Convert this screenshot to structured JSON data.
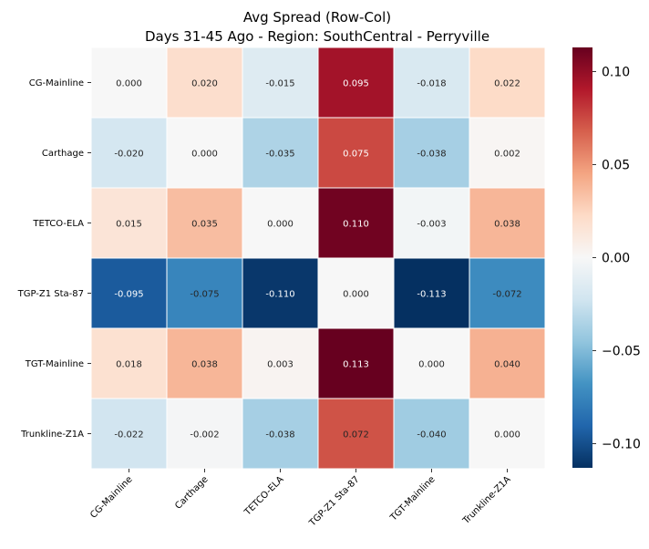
{
  "chart_data": {
    "type": "heatmap",
    "title": "Avg Spread (Row-Col)",
    "subtitle": "Days 31-45 Ago - Region: SouthCentral - Perryville",
    "rows": [
      "CG-Mainline",
      "Carthage",
      "TETCO-ELA",
      "TGP-Z1 Sta-87",
      "TGT-Mainline",
      "Trunkline-Z1A"
    ],
    "columns": [
      "CG-Mainline",
      "Carthage",
      "TETCO-ELA",
      "TGP-Z1 Sta-87",
      "TGT-Mainline",
      "Trunkline-Z1A"
    ],
    "values": [
      [
        0.0,
        0.02,
        -0.015,
        0.095,
        -0.018,
        0.022
      ],
      [
        -0.02,
        0.0,
        -0.035,
        0.075,
        -0.038,
        0.002
      ],
      [
        0.015,
        0.035,
        0.0,
        0.11,
        -0.003,
        0.038
      ],
      [
        -0.095,
        -0.075,
        -0.11,
        0.0,
        -0.113,
        -0.072
      ],
      [
        0.018,
        0.038,
        0.003,
        0.113,
        0.0,
        0.04
      ],
      [
        -0.022,
        -0.002,
        -0.038,
        0.072,
        -0.04,
        0.0
      ]
    ],
    "value_format_decimals": 3,
    "color_range": [
      -0.113,
      0.113
    ],
    "colormap": "RdBu_r",
    "colorbar_ticks": [
      0.1,
      0.05,
      0.0,
      -0.05,
      -0.1
    ],
    "colorbar_tick_labels": [
      "0.10",
      "0.05",
      "0.00",
      "−0.05",
      "−0.10"
    ],
    "legend_position": "right colorbar",
    "grid": false
  }
}
